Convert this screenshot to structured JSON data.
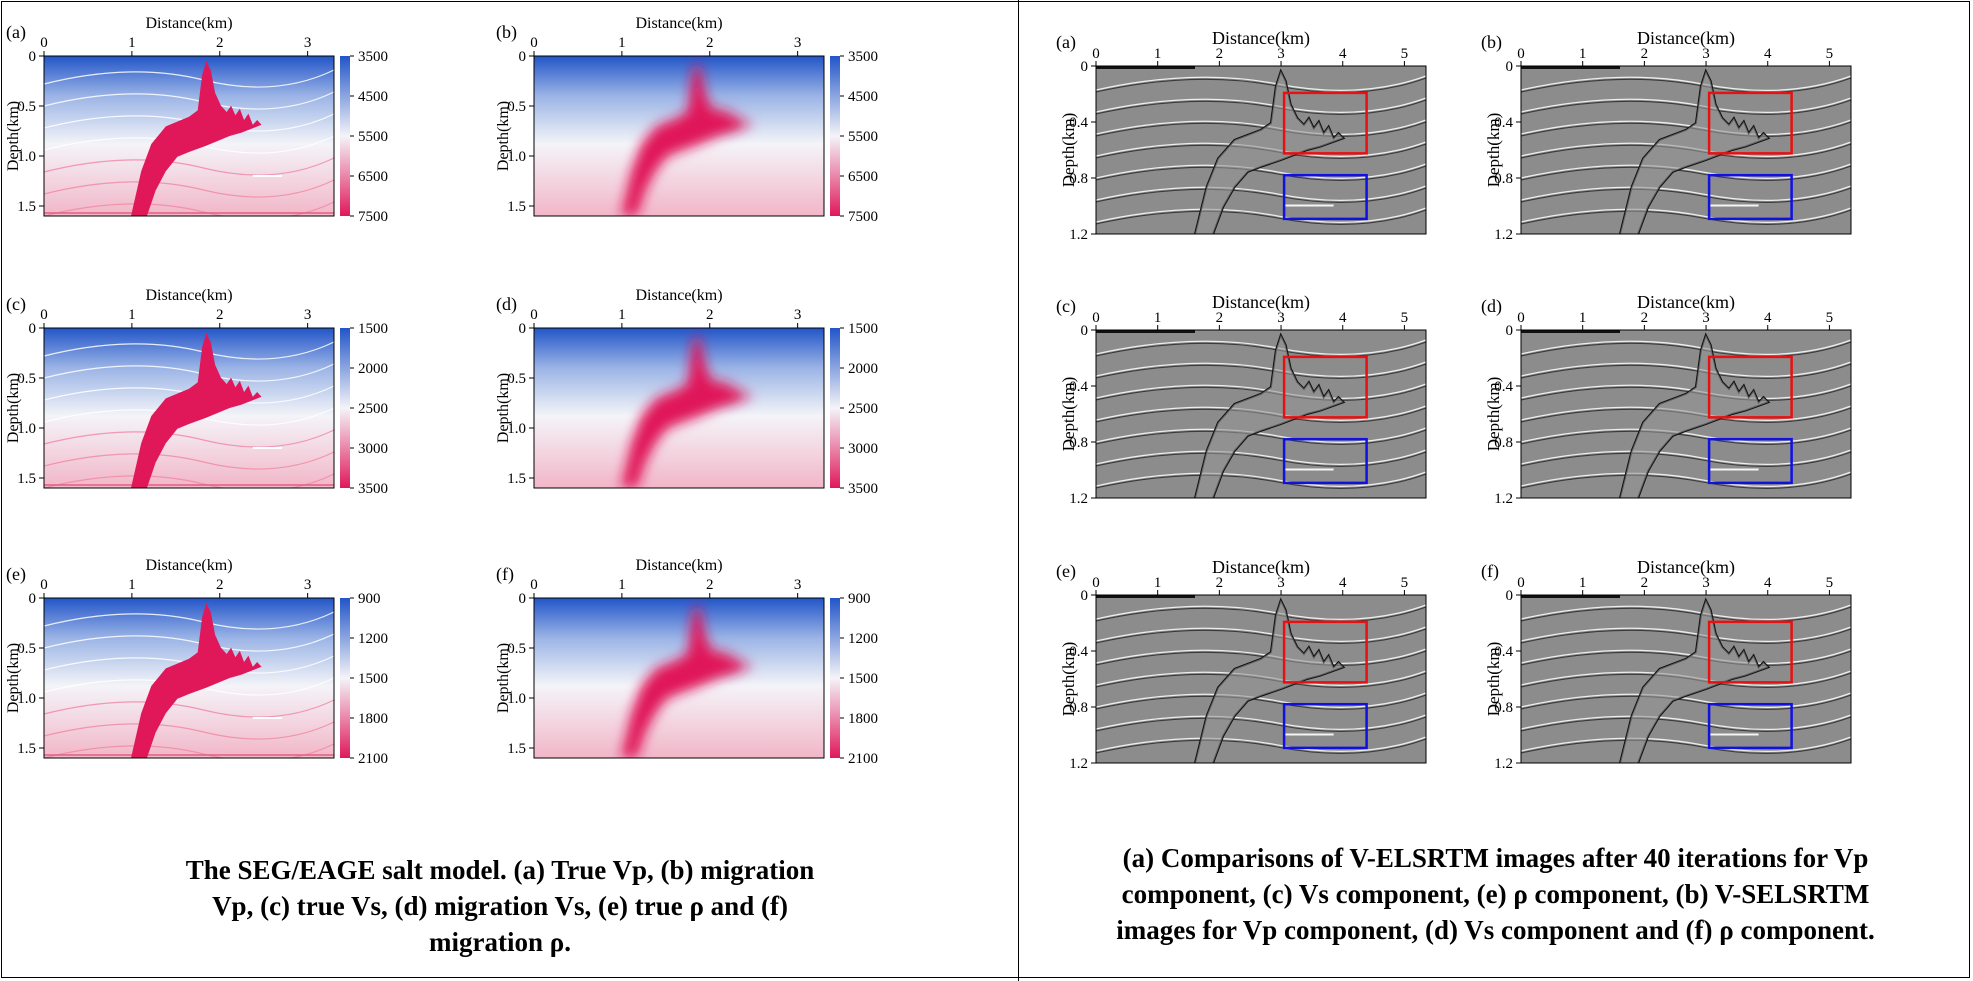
{
  "left": {
    "xlabel": "Distance(km)",
    "ylabel": "Depth(km)",
    "xticks": [
      "0",
      "1",
      "2",
      "3"
    ],
    "yticks": [
      "0",
      "0.5",
      "1.0",
      "1.5"
    ],
    "panels": [
      {
        "label": "(a)",
        "style": "true",
        "colorbar": [
          "3500",
          "4500",
          "5500",
          "6500",
          "7500"
        ]
      },
      {
        "label": "(b)",
        "style": "smooth",
        "colorbar": [
          "3500",
          "4500",
          "5500",
          "6500",
          "7500"
        ]
      },
      {
        "label": "(c)",
        "style": "true",
        "colorbar": [
          "1500",
          "2000",
          "2500",
          "3000",
          "3500"
        ]
      },
      {
        "label": "(d)",
        "style": "smooth",
        "colorbar": [
          "1500",
          "2000",
          "2500",
          "3000",
          "3500"
        ]
      },
      {
        "label": "(e)",
        "style": "true",
        "colorbar": [
          "900",
          "1200",
          "1500",
          "1800",
          "2100"
        ]
      },
      {
        "label": "(f)",
        "style": "smooth",
        "colorbar": [
          "900",
          "1200",
          "1500",
          "1800",
          "2100"
        ]
      }
    ],
    "caption": [
      "The SEG/EAGE salt model. (a) True Vp, (b) migration",
      "Vp, (c) true Vs, (d) migration Vs, (e) true ρ and (f)",
      "migration ρ."
    ]
  },
  "right": {
    "xlabel": "Distance(km)",
    "ylabel": "Depth(km)",
    "xticks": [
      "0",
      "1",
      "2",
      "3",
      "4",
      "5"
    ],
    "yticks": [
      "0",
      "0.4",
      "0.8",
      "1.2"
    ],
    "panels": [
      {
        "label": "(a)"
      },
      {
        "label": "(b)"
      },
      {
        "label": "(c)"
      },
      {
        "label": "(d)"
      },
      {
        "label": "(e)"
      },
      {
        "label": "(f)"
      }
    ],
    "caption": [
      "(a) Comparisons of V-ELSRTM images after 40 iterations for Vp",
      "component, (c) Vs component, (e) ρ component, (b) V-SELSRTM",
      "images for Vp component, (d) Vs component and (f) ρ component."
    ]
  },
  "colors": {
    "high": "#e0185a",
    "low": "#2255c8",
    "mid": "#f4f4f8",
    "red_box": "#e81010",
    "blue_box": "#1010e0"
  }
}
